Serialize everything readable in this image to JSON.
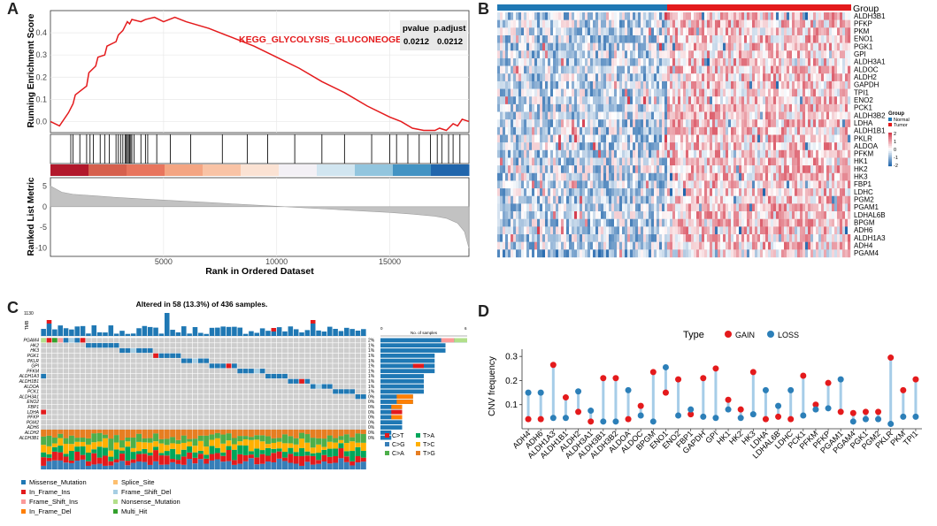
{
  "panels": {
    "a": "A",
    "b": "B",
    "c": "C",
    "d": "D"
  },
  "colors": {
    "red": "#e41a1c",
    "blue": "#2c7fb8",
    "lightblue": "#a6cde8",
    "grey": "#c8c8c8"
  },
  "chart_data": [
    {
      "type": "line",
      "panel": "A",
      "title": "KEGG_GLYCOLYSIS_GLUCONEOGENESIS",
      "ylabel": "Running Enrichment Score",
      "ylabel2": "Ranked List Metric",
      "xlabel": "Rank in Ordered Dataset",
      "xlim": [
        0,
        18500
      ],
      "ylim": [
        -0.05,
        0.5
      ],
      "yticks": [
        0.0,
        0.1,
        0.2,
        0.3,
        0.4
      ],
      "ytick_labels": [
        "0.0",
        "0.1",
        "0.2",
        "0.3",
        "0.4"
      ],
      "xticks": [
        5000,
        10000,
        15000
      ],
      "xtick_labels": [
        "5000",
        "10000",
        "15000"
      ],
      "metric_yticks": [
        -10,
        -5,
        0,
        5
      ],
      "metric_ytick_labels": [
        "-10",
        "-5",
        "0",
        "5"
      ],
      "stats_headers": [
        "pvalue",
        "p.adjust"
      ],
      "stats_values": [
        "0.0212",
        "0.0212"
      ],
      "es_curve": {
        "x": [
          0,
          400,
          800,
          1000,
          1100,
          1600,
          1700,
          2000,
          2100,
          2400,
          2500,
          2900,
          3000,
          3200,
          3300,
          3400,
          3500,
          3600,
          4000,
          4200,
          4600,
          5000,
          5500,
          6000,
          7000,
          8000,
          9000,
          10000,
          11000,
          12000,
          13000,
          14000,
          15000,
          15500,
          16000,
          16500,
          17000,
          17200,
          17500,
          17800,
          18000,
          18200,
          18500
        ],
        "y": [
          0.0,
          -0.02,
          0.04,
          0.08,
          0.12,
          0.16,
          0.22,
          0.25,
          0.29,
          0.3,
          0.34,
          0.36,
          0.39,
          0.41,
          0.43,
          0.45,
          0.44,
          0.46,
          0.45,
          0.46,
          0.47,
          0.45,
          0.47,
          0.45,
          0.42,
          0.38,
          0.34,
          0.29,
          0.24,
          0.18,
          0.13,
          0.07,
          0.02,
          0.0,
          -0.03,
          -0.04,
          -0.04,
          -0.03,
          -0.04,
          -0.01,
          -0.02,
          0.01,
          0.0
        ]
      },
      "hit_ranks": [
        900,
        1000,
        1300,
        1600,
        1750,
        1900,
        2200,
        2400,
        2600,
        2900,
        3000,
        3100,
        3200,
        3300,
        3350,
        3400,
        3450,
        3500,
        3550,
        3600,
        3700,
        4000,
        4200,
        4300,
        4700,
        5300,
        6200,
        7600,
        8700,
        9600,
        10800,
        12000,
        13000,
        14200,
        15000,
        15300,
        15800,
        16300,
        16800,
        17100,
        17300,
        17600,
        17800,
        18100
      ],
      "metric_curve": {
        "x": [
          0,
          500,
          1000,
          2000,
          3000,
          4000,
          5000,
          6000,
          7000,
          8000,
          9000,
          10000,
          11000,
          12000,
          13000,
          14000,
          15000,
          16000,
          17000,
          17500,
          18000,
          18300,
          18500
        ],
        "y": [
          5,
          3.5,
          3,
          2.6,
          2.2,
          1.9,
          1.6,
          1.3,
          1.0,
          0.7,
          0.4,
          0.1,
          -0.2,
          -0.5,
          -0.8,
          -1.1,
          -1.4,
          -1.8,
          -2.3,
          -2.8,
          -4,
          -6,
          -10
        ]
      }
    },
    {
      "type": "heatmap",
      "panel": "B",
      "legend_title": "Group",
      "groups": [
        "Normal",
        "Tumor"
      ],
      "scale_ticks": [
        "2",
        "1",
        "0",
        "-1",
        "-2"
      ],
      "rows": [
        "ALDH3B1",
        "PFKP",
        "PKM",
        "ENO1",
        "PGK1",
        "GPI",
        "ALDH3A1",
        "ALDOC",
        "ALDH2",
        "GAPDH",
        "TPI1",
        "ENO2",
        "PCK1",
        "ALDH3B2",
        "LDHA",
        "ALDH1B1",
        "PKLR",
        "ALDOA",
        "PFKM",
        "HK1",
        "HK2",
        "HK3",
        "FBP1",
        "LDHC",
        "PGM2",
        "PGAM1",
        "LDHAL6B",
        "BPGM",
        "ADH6",
        "ALDH1A3",
        "ADH4",
        "PGAM4"
      ]
    },
    {
      "type": "table",
      "panel": "C",
      "title": "Altered in 58 (13.3%) of 436 samples.",
      "tmb_label": "TMB",
      "tmb_max": "1130",
      "samples_axis_label": "No. of samples",
      "samples_axis_ticks": [
        "0",
        "6"
      ],
      "genes": [
        "PGAM4",
        "HK2",
        "HK3",
        "PGK1",
        "PKLR",
        "GPI",
        "PFKM",
        "ALDH1A3",
        "ALDH1B1",
        "ALDOA",
        "PCK1",
        "ALDH3A1",
        "ENO2",
        "FBP1",
        "LDHA",
        "PFKP",
        "PGM2",
        "ADH6",
        "ALDH2",
        "ALDH3B1"
      ],
      "percents": [
        "2%",
        "1%",
        "1%",
        "1%",
        "1%",
        "1%",
        "1%",
        "1%",
        "1%",
        "1%",
        "1%",
        "0%",
        "0%",
        "0%",
        "0%",
        "0%",
        "0%",
        "0%",
        "0%",
        "0%"
      ],
      "sample_counts": [
        8,
        6,
        6,
        5,
        5,
        5,
        5,
        4,
        4,
        4,
        4,
        3,
        3,
        2,
        2,
        2,
        2,
        2,
        1,
        1
      ],
      "variant_types": [
        "Missense_Mutation",
        "In_Frame_Ins",
        "Frame_Shift_Ins",
        "In_Frame_Del",
        "Splice_Site",
        "Frame_Shift_Del",
        "Nonsense_Mutation",
        "Multi_Hit"
      ],
      "variant_colors": [
        "#1f78b4",
        "#e31a1c",
        "#fb9a99",
        "#ff7f00",
        "#fdbf6f",
        "#a6cee3",
        "#b2df8a",
        "#33a02c"
      ],
      "titv_classes": [
        "C>T",
        "C>G",
        "C>A",
        "T>A",
        "T>C",
        "T>G"
      ],
      "titv_colors": [
        "#e41a1c",
        "#377eb8",
        "#4daf4a",
        "#00a65a",
        "#ffb000",
        "#e67e22"
      ]
    },
    {
      "type": "scatter",
      "panel": "D",
      "legend_title": "Type",
      "legend_entries": [
        "GAIN",
        "LOSS"
      ],
      "ylabel": "CNV frequency",
      "ylim": [
        0,
        0.33
      ],
      "yticks": [
        0.1,
        0.2,
        0.3
      ],
      "ytick_labels": [
        "0.1",
        "0.2",
        "0.3"
      ],
      "categories": [
        "ADH4",
        "ADH6",
        "ALDH1A3",
        "ALDH1B1",
        "ALDH2",
        "ALDH3A1",
        "ALDH3B1",
        "ALDH3B2",
        "ALDOA",
        "ALDOC",
        "BPGM",
        "ENO1",
        "ENO2",
        "FBP1",
        "GAPDH",
        "GPI",
        "HK1",
        "HK2",
        "HK3",
        "LDHA",
        "LDHAL6B",
        "LDHC",
        "PCK1",
        "PFKM",
        "PFKP",
        "PGAM1",
        "PGAM4",
        "PGK1",
        "PGM2",
        "PKLR",
        "PKM",
        "TPI1"
      ],
      "series": [
        {
          "name": "GAIN",
          "values": [
            0.04,
            0.04,
            0.265,
            0.13,
            0.07,
            0.03,
            0.21,
            0.21,
            0.04,
            0.095,
            0.235,
            0.15,
            0.205,
            0.06,
            0.21,
            0.25,
            0.12,
            0.08,
            0.235,
            0.04,
            0.05,
            0.04,
            0.22,
            0.1,
            0.19,
            0.07,
            0.065,
            0.07,
            0.07,
            0.295,
            0.16,
            0.205
          ]
        },
        {
          "name": "LOSS",
          "values": [
            0.15,
            0.15,
            0.045,
            0.045,
            0.155,
            0.075,
            0.03,
            0.03,
            0.16,
            0.055,
            0.03,
            0.255,
            0.055,
            0.08,
            0.05,
            0.045,
            0.08,
            0.045,
            0.06,
            0.16,
            0.095,
            0.16,
            0.055,
            0.08,
            0.085,
            0.205,
            0.03,
            0.04,
            0.04,
            0.02,
            0.05,
            0.05
          ]
        }
      ]
    }
  ]
}
